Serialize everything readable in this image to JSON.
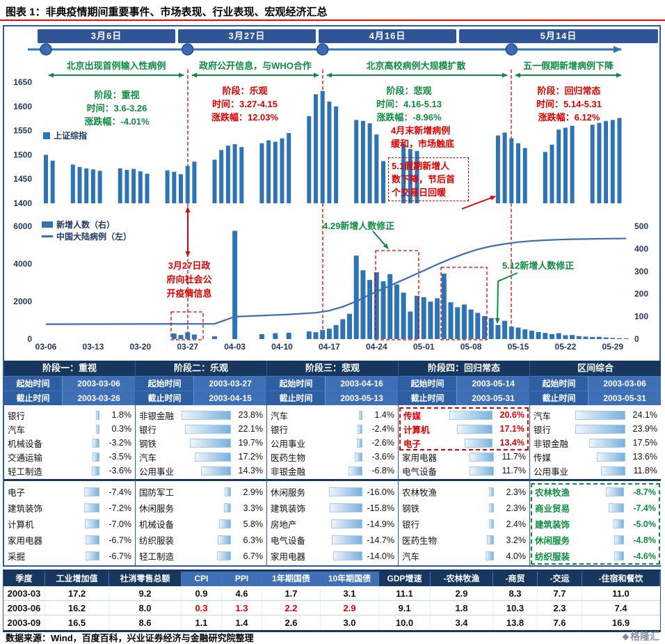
{
  "page": {
    "title": "图表 1：非典疫情期间重要事件、市场表现、行业表现、宏观经济汇总",
    "footer_source": "数据来源：Wind，百度百科，兴业证券经济与金融研究院整理",
    "logo_text": "格隆汇"
  },
  "colors": {
    "navy": "#17375E",
    "mid_blue": "#3F6FB5",
    "bar_blue": "#2E74B5",
    "red": "#E00000",
    "green": "#0E8C42"
  },
  "timeline": {
    "dates": [
      "3月6日",
      "3月27日",
      "4月16日",
      "5月14日"
    ],
    "events": [
      "北京出现首例输入性病例",
      "政府公开信息，与WHO合作",
      "北京高校病例大规模扩散",
      "五一假期新增病例下降"
    ]
  },
  "stage_annotations": [
    {
      "text": "阶段：重视\n时间：3.6-3.26\n涨跌幅：-4.01%",
      "color": "green"
    },
    {
      "text": "阶段：乐观\n时间：3.27-4.15\n涨跌幅：12.03%",
      "color": "red"
    },
    {
      "text": "阶段：悲观\n时间：4.16-5.13\n涨跌幅：-8.96%",
      "color": "green"
    },
    {
      "text": "阶段：回归常态\n时间：5.14-5.31\n涨跌幅：6.12%",
      "color": "red"
    }
  ],
  "annotations": {
    "april_end": "4月末新增病例\n缓和，市场触底",
    "may_holiday": "5.1假期新增人\n数下降，节后首\n个交易日回暖",
    "march27": "3月27日政\n府向社会公\n开疫情信息",
    "apr29_fix": "4.29新增人数修正",
    "may12_fix": "5.12新增人数修正"
  },
  "chart_data": [
    {
      "type": "bar",
      "name": "上证综指",
      "ylim": [
        1400,
        1650
      ],
      "yticks": [
        1650,
        1600,
        1550,
        1500,
        1450,
        1400
      ],
      "points": [
        [
          "03-06",
          1500
        ],
        [
          "03-07",
          1488
        ],
        [
          "03-10",
          1480
        ],
        [
          "03-11",
          1475
        ],
        [
          "03-12",
          1472
        ],
        [
          "03-13",
          1470
        ],
        [
          "03-14",
          1467
        ],
        [
          "03-17",
          1472
        ],
        [
          "03-18",
          1469
        ],
        [
          "03-19",
          1471
        ],
        [
          "03-20",
          1466
        ],
        [
          "03-21",
          1461
        ],
        [
          "03-24",
          1468
        ],
        [
          "03-25",
          1465
        ],
        [
          "03-26",
          1460
        ],
        [
          "03-27",
          1477
        ],
        [
          "03-28",
          1486
        ],
        [
          "03-31",
          1490
        ],
        [
          "04-01",
          1510
        ],
        [
          "04-02",
          1519
        ],
        [
          "04-03",
          1522
        ],
        [
          "04-04",
          1516
        ],
        [
          "04-07",
          1524
        ],
        [
          "04-08",
          1530
        ],
        [
          "04-09",
          1527
        ],
        [
          "04-10",
          1534
        ],
        [
          "04-11",
          1545
        ],
        [
          "04-14",
          1580
        ],
        [
          "04-15",
          1625
        ],
        [
          "04-16",
          1632
        ],
        [
          "04-17",
          1610
        ],
        [
          "04-18",
          1600
        ],
        [
          "04-21",
          1572
        ],
        [
          "04-22",
          1570
        ],
        [
          "04-23",
          1565
        ],
        [
          "04-24",
          1542
        ],
        [
          "04-25",
          1487
        ],
        [
          "04-28",
          1522
        ],
        [
          "04-29",
          1512
        ],
        [
          "04-30",
          1508
        ],
        [
          "05-12",
          1540
        ],
        [
          "05-13",
          1546
        ],
        [
          "05-14",
          1534
        ],
        [
          "05-15",
          1524
        ],
        [
          "05-16",
          1514
        ],
        [
          "05-19",
          1506
        ],
        [
          "05-20",
          1521
        ],
        [
          "05-21",
          1552
        ],
        [
          "05-22",
          1556
        ],
        [
          "05-23",
          1560
        ],
        [
          "05-26",
          1562
        ],
        [
          "05-27",
          1566
        ],
        [
          "05-28",
          1570
        ],
        [
          "05-29",
          1572
        ],
        [
          "05-30",
          1576
        ]
      ]
    },
    {
      "type": "bar+line",
      "bar_name": "新增人数（右）",
      "line_name": "中国大陆病例（左）",
      "left_ylim": [
        0,
        6000
      ],
      "left_yticks": [
        6000,
        4000,
        2000,
        0
      ],
      "right_ylim": [
        0,
        500
      ],
      "right_yticks": [
        500,
        400,
        300,
        200,
        100,
        0
      ],
      "xticks": [
        "03-06",
        "03-13",
        "03-20",
        "03-27",
        "04-03",
        "04-10",
        "04-17",
        "04-24",
        "05-01",
        "05-08",
        "05-15",
        "05-22",
        "05-29"
      ],
      "bars": [
        [
          "03-25",
          25
        ],
        [
          "03-26",
          18
        ],
        [
          "03-27",
          30
        ],
        [
          "03-28",
          20
        ],
        [
          "03-31",
          12
        ],
        [
          "04-03",
          480
        ],
        [
          "04-07",
          22
        ],
        [
          "04-09",
          26
        ],
        [
          "04-11",
          28
        ],
        [
          "04-14",
          34
        ],
        [
          "04-15",
          30
        ],
        [
          "04-16",
          40
        ],
        [
          "04-17",
          46
        ],
        [
          "04-18",
          62
        ],
        [
          "04-19",
          88
        ],
        [
          "04-20",
          112
        ],
        [
          "04-21",
          370
        ],
        [
          "04-22",
          305
        ],
        [
          "04-23",
          262
        ],
        [
          "04-24",
          296
        ],
        [
          "04-25",
          256
        ],
        [
          "04-26",
          288
        ],
        [
          "04-27",
          242
        ],
        [
          "04-28",
          206
        ],
        [
          "04-29",
          122
        ],
        [
          "04-30",
          192
        ],
        [
          "05-01",
          186
        ],
        [
          "05-02",
          166
        ],
        [
          "05-03",
          181
        ],
        [
          "05-04",
          290
        ],
        [
          "05-05",
          163
        ],
        [
          "05-06",
          141
        ],
        [
          "05-07",
          153
        ],
        [
          "05-08",
          131
        ],
        [
          "05-09",
          116
        ],
        [
          "05-10",
          102
        ],
        [
          "05-11",
          93
        ],
        [
          "05-12",
          62
        ],
        [
          "05-13",
          81
        ],
        [
          "05-14",
          55
        ],
        [
          "05-15",
          51
        ],
        [
          "05-16",
          43
        ],
        [
          "05-17",
          37
        ],
        [
          "05-18",
          31
        ],
        [
          "05-19",
          27
        ],
        [
          "05-20",
          22
        ],
        [
          "05-21",
          26
        ],
        [
          "05-22",
          17
        ],
        [
          "05-23",
          18
        ],
        [
          "05-24",
          13
        ],
        [
          "05-25",
          11
        ],
        [
          "05-26",
          9
        ],
        [
          "05-27",
          10
        ],
        [
          "05-28",
          7
        ],
        [
          "05-29",
          5
        ],
        [
          "05-30",
          4
        ],
        [
          "05-31",
          3
        ]
      ],
      "line": [
        [
          "03-06",
          792
        ],
        [
          "03-12",
          797
        ],
        [
          "03-18",
          802
        ],
        [
          "03-24",
          806
        ],
        [
          "03-31",
          810
        ],
        [
          "04-03",
          1190
        ],
        [
          "04-07",
          1250
        ],
        [
          "04-11",
          1310
        ],
        [
          "04-15",
          1400
        ],
        [
          "04-17",
          1510
        ],
        [
          "04-19",
          1720
        ],
        [
          "04-21",
          2010
        ],
        [
          "04-23",
          2360
        ],
        [
          "04-25",
          2680
        ],
        [
          "04-27",
          3000
        ],
        [
          "04-29",
          3320
        ],
        [
          "05-01",
          3640
        ],
        [
          "05-03",
          3970
        ],
        [
          "05-05",
          4270
        ],
        [
          "05-07",
          4540
        ],
        [
          "05-09",
          4770
        ],
        [
          "05-11",
          4940
        ],
        [
          "05-13",
          5060
        ],
        [
          "05-15",
          5160
        ],
        [
          "05-17",
          5220
        ],
        [
          "05-19",
          5260
        ],
        [
          "05-21",
          5290
        ],
        [
          "05-23",
          5310
        ],
        [
          "05-25",
          5325
        ],
        [
          "05-27",
          5335
        ],
        [
          "05-29",
          5345
        ],
        [
          "05-31",
          5350
        ]
      ]
    }
  ],
  "stage_table": {
    "start_label": "起始时间",
    "end_label": "截止时间",
    "columns": [
      {
        "header": "阶段一：重视",
        "start": "2003-03-06",
        "end": "2003-03-26",
        "top": [
          {
            "name": "银行",
            "pct": "1.8%"
          },
          {
            "name": "汽车",
            "pct": "0.3%"
          },
          {
            "name": "机械设备",
            "pct": "-3.2%"
          },
          {
            "name": "交通运输",
            "pct": "-3.5%"
          },
          {
            "name": "轻工制造",
            "pct": "-3.6%"
          }
        ],
        "bottom": [
          {
            "name": "电子",
            "pct": "-7.4%"
          },
          {
            "name": "建筑装饰",
            "pct": "-7.2%"
          },
          {
            "name": "计算机",
            "pct": "-7.0%"
          },
          {
            "name": "家用电器",
            "pct": "-6.7%"
          },
          {
            "name": "采掘",
            "pct": "-6.7%"
          }
        ]
      },
      {
        "header": "阶段二：乐观",
        "start": "2003-03-27",
        "end": "2003-04-15",
        "top": [
          {
            "name": "非银金融",
            "pct": "23.8%"
          },
          {
            "name": "银行",
            "pct": "22.1%"
          },
          {
            "name": "钢铁",
            "pct": "19.7%"
          },
          {
            "name": "汽车",
            "pct": "17.2%"
          },
          {
            "name": "公用事业",
            "pct": "14.3%"
          }
        ],
        "bottom": [
          {
            "name": "国防军工",
            "pct": "2.9%"
          },
          {
            "name": "休闲服务",
            "pct": "3.3%"
          },
          {
            "name": "机械设备",
            "pct": "5.8%"
          },
          {
            "name": "纺织服装",
            "pct": "6.3%"
          },
          {
            "name": "轻工制造",
            "pct": "6.7%"
          }
        ]
      },
      {
        "header": "阶段三：悲观",
        "start": "2003-04-16",
        "end": "2003-05-13",
        "top": [
          {
            "name": "汽车",
            "pct": "1.4%"
          },
          {
            "name": "银行",
            "pct": "-2.4%"
          },
          {
            "name": "公用事业",
            "pct": "-2.6%"
          },
          {
            "name": "医药生物",
            "pct": "-3.6%"
          },
          {
            "name": "非银金融",
            "pct": "-6.8%"
          }
        ],
        "bottom": [
          {
            "name": "休闲服务",
            "pct": "-16.0%"
          },
          {
            "name": "建筑装饰",
            "pct": "-15.8%"
          },
          {
            "name": "房地产",
            "pct": "-14.9%"
          },
          {
            "name": "电气设备",
            "pct": "-14.7%"
          },
          {
            "name": "家用电器",
            "pct": "-14.0%"
          }
        ]
      },
      {
        "header": "阶段四：回归常态",
        "start": "2003-05-14",
        "end": "2003-05-31",
        "box": {
          "section": "top",
          "count": 3,
          "color": "redbox"
        },
        "top": [
          {
            "name": "传媒",
            "pct": "20.6%",
            "hl": "red"
          },
          {
            "name": "计算机",
            "pct": "17.1%",
            "hl": "red"
          },
          {
            "name": "电子",
            "pct": "13.4%",
            "hl": "red"
          },
          {
            "name": "家用电器",
            "pct": "11.7%"
          },
          {
            "name": "电气设备",
            "pct": "11.7%"
          }
        ],
        "bottom": [
          {
            "name": "农林牧渔",
            "pct": "2.3%"
          },
          {
            "name": "钢铁",
            "pct": "2.3%"
          },
          {
            "name": "银行",
            "pct": "2.4%"
          },
          {
            "name": "医药生物",
            "pct": "3.2%"
          },
          {
            "name": "汽车",
            "pct": "4.0%"
          }
        ]
      },
      {
        "header": "区间综合",
        "start": "2003-03-06",
        "end": "2003-05-31",
        "box": {
          "section": "bottom",
          "count": 5,
          "color": "greenbox"
        },
        "top": [
          {
            "name": "汽车",
            "pct": "24.1%"
          },
          {
            "name": "银行",
            "pct": "23.9%"
          },
          {
            "name": "非银金融",
            "pct": "17.5%"
          },
          {
            "name": "传媒",
            "pct": "13.6%"
          },
          {
            "name": "公用事业",
            "pct": "11.8%"
          }
        ],
        "bottom": [
          {
            "name": "农林牧渔",
            "pct": "-8.7%",
            "hl": "green"
          },
          {
            "name": "商业贸易",
            "pct": "-7.4%",
            "hl": "green"
          },
          {
            "name": "建筑装饰",
            "pct": "-5.0%",
            "hl": "green"
          },
          {
            "name": "休闲服务",
            "pct": "-4.8%",
            "hl": "green"
          },
          {
            "name": "纺织服装",
            "pct": "-4.6%",
            "hl": "green"
          }
        ]
      }
    ]
  },
  "macro_table": {
    "headers": [
      {
        "t": "季度",
        "lite": false
      },
      {
        "t": "工业增加值",
        "lite": false
      },
      {
        "t": "社消零售总额",
        "lite": false
      },
      {
        "t": "CPI",
        "lite": true
      },
      {
        "t": "PPI",
        "lite": true
      },
      {
        "t": "1年期国债",
        "lite": true
      },
      {
        "t": "10年期国债",
        "lite": true
      },
      {
        "t": "GDP增速",
        "lite": false
      },
      {
        "t": "-农林牧渔",
        "lite": false
      },
      {
        "t": "-商贸",
        "lite": false
      },
      {
        "t": "-交运",
        "lite": false
      },
      {
        "t": "-住宿和餐饮",
        "lite": false
      }
    ],
    "rows": [
      {
        "label": "2003-03",
        "values": [
          "17.2",
          "9.2",
          "0.9",
          "4.6",
          "1.7",
          "3.1",
          "11.1",
          "2.9",
          "8.3",
          "7.7",
          "11.0"
        ],
        "red": []
      },
      {
        "label": "2003-06",
        "values": [
          "16.2",
          "8.0",
          "0.3",
          "1.3",
          "2.2",
          "2.9",
          "9.1",
          "1.8",
          "10.3",
          "2.3",
          "7.4"
        ],
        "red": [
          2,
          3,
          4,
          5
        ]
      },
      {
        "label": "2003-09",
        "values": [
          "16.5",
          "8.6",
          "1.1",
          "1.4",
          "2.6",
          "3.0",
          "10.0",
          "3.4",
          "13.8",
          "7.6",
          "16.9"
        ],
        "red": []
      }
    ]
  }
}
